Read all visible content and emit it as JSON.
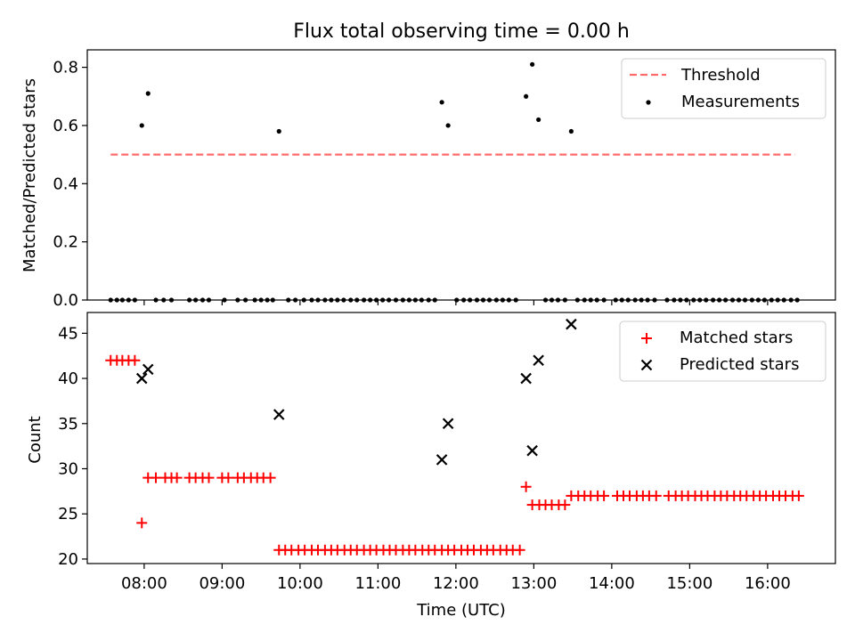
{
  "chart_data": [
    {
      "type": "scatter",
      "title": "Flux total observing time = 0.00 h",
      "xlabel": "",
      "ylabel": "Matched/Predicted stars",
      "xlim": [
        7.27,
        16.87
      ],
      "ylim": [
        0.0,
        0.86
      ],
      "yticks": [
        0.0,
        0.2,
        0.4,
        0.6,
        0.8
      ],
      "ytick_labels": [
        "0.0",
        "0.2",
        "0.4",
        "0.6",
        "0.8"
      ],
      "xticks": [
        8,
        9,
        10,
        11,
        12,
        13,
        14,
        15,
        16
      ],
      "legend_position": "top-right",
      "threshold": {
        "name": "Threshold",
        "color": "#ff6b6b",
        "y": 0.5,
        "x_start": 7.57,
        "x_end": 16.35
      },
      "measurements": {
        "name": "Measurements",
        "color": "#000000",
        "points": [
          [
            7.57,
            0
          ],
          [
            7.65,
            0
          ],
          [
            7.72,
            0
          ],
          [
            7.8,
            0
          ],
          [
            7.88,
            0
          ],
          [
            7.97,
            0.6
          ],
          [
            8.05,
            0.71
          ],
          [
            8.15,
            0
          ],
          [
            8.25,
            0
          ],
          [
            8.35,
            0
          ],
          [
            8.58,
            0
          ],
          [
            8.66,
            0
          ],
          [
            8.75,
            0
          ],
          [
            8.83,
            0
          ],
          [
            9.03,
            0
          ],
          [
            9.2,
            0
          ],
          [
            9.3,
            0
          ],
          [
            9.42,
            0
          ],
          [
            9.5,
            0
          ],
          [
            9.58,
            0
          ],
          [
            9.65,
            0
          ],
          [
            9.73,
            0.58
          ],
          [
            9.85,
            0
          ],
          [
            9.94,
            0
          ],
          [
            10.05,
            0
          ],
          [
            10.15,
            0
          ],
          [
            10.23,
            0
          ],
          [
            10.32,
            0
          ],
          [
            10.4,
            0
          ],
          [
            10.48,
            0
          ],
          [
            10.56,
            0
          ],
          [
            10.65,
            0
          ],
          [
            10.73,
            0
          ],
          [
            10.82,
            0
          ],
          [
            10.9,
            0
          ],
          [
            10.98,
            0
          ],
          [
            11.06,
            0
          ],
          [
            11.14,
            0
          ],
          [
            11.23,
            0
          ],
          [
            11.32,
            0
          ],
          [
            11.4,
            0
          ],
          [
            11.48,
            0
          ],
          [
            11.56,
            0
          ],
          [
            11.65,
            0
          ],
          [
            11.73,
            0
          ],
          [
            11.82,
            0.68
          ],
          [
            11.9,
            0.6
          ],
          [
            12.01,
            0
          ],
          [
            12.1,
            0
          ],
          [
            12.18,
            0
          ],
          [
            12.27,
            0
          ],
          [
            12.35,
            0
          ],
          [
            12.43,
            0
          ],
          [
            12.52,
            0
          ],
          [
            12.6,
            0
          ],
          [
            12.68,
            0
          ],
          [
            12.77,
            0
          ],
          [
            12.9,
            0.7
          ],
          [
            12.98,
            0.81
          ],
          [
            13.06,
            0.62
          ],
          [
            13.15,
            0
          ],
          [
            13.23,
            0
          ],
          [
            13.31,
            0
          ],
          [
            13.4,
            0
          ],
          [
            13.48,
            0.58
          ],
          [
            13.56,
            0
          ],
          [
            13.65,
            0
          ],
          [
            13.73,
            0
          ],
          [
            13.81,
            0
          ],
          [
            13.9,
            0
          ],
          [
            14.05,
            0
          ],
          [
            14.13,
            0
          ],
          [
            14.21,
            0
          ],
          [
            14.3,
            0
          ],
          [
            14.38,
            0
          ],
          [
            14.46,
            0
          ],
          [
            14.55,
            0
          ],
          [
            14.71,
            0
          ],
          [
            14.8,
            0
          ],
          [
            14.88,
            0
          ],
          [
            14.96,
            0
          ],
          [
            15.05,
            0
          ],
          [
            15.13,
            0
          ],
          [
            15.21,
            0
          ],
          [
            15.3,
            0
          ],
          [
            15.38,
            0
          ],
          [
            15.46,
            0
          ],
          [
            15.55,
            0
          ],
          [
            15.63,
            0
          ],
          [
            15.71,
            0
          ],
          [
            15.8,
            0
          ],
          [
            15.88,
            0
          ],
          [
            15.96,
            0
          ],
          [
            16.05,
            0
          ],
          [
            16.13,
            0
          ],
          [
            16.21,
            0
          ],
          [
            16.3,
            0
          ],
          [
            16.38,
            0
          ]
        ]
      }
    },
    {
      "type": "scatter",
      "title": "",
      "xlabel": "Time (UTC)",
      "ylabel": "Count",
      "xlim": [
        7.27,
        16.87
      ],
      "ylim": [
        19.5,
        47.3
      ],
      "yticks": [
        20,
        25,
        30,
        35,
        40,
        45
      ],
      "ytick_labels": [
        "20",
        "25",
        "30",
        "35",
        "40",
        "45"
      ],
      "xticks": [
        8,
        9,
        10,
        11,
        12,
        13,
        14,
        15,
        16
      ],
      "xtick_labels": [
        "08:00",
        "09:00",
        "10:00",
        "11:00",
        "12:00",
        "13:00",
        "14:00",
        "15:00",
        "16:00"
      ],
      "legend_position": "top-right",
      "matched": {
        "name": "Matched stars",
        "color": "#ff0000",
        "points": [
          [
            7.57,
            42
          ],
          [
            7.65,
            42
          ],
          [
            7.72,
            42
          ],
          [
            7.8,
            42
          ],
          [
            7.88,
            42
          ],
          [
            7.97,
            24
          ],
          [
            8.05,
            29
          ],
          [
            8.15,
            29
          ],
          [
            8.27,
            29
          ],
          [
            8.35,
            29
          ],
          [
            8.42,
            29
          ],
          [
            8.58,
            29
          ],
          [
            8.66,
            29
          ],
          [
            8.75,
            29
          ],
          [
            8.83,
            29
          ],
          [
            9.0,
            29
          ],
          [
            9.08,
            29
          ],
          [
            9.2,
            29
          ],
          [
            9.28,
            29
          ],
          [
            9.37,
            29
          ],
          [
            9.45,
            29
          ],
          [
            9.53,
            29
          ],
          [
            9.62,
            29
          ],
          [
            9.73,
            21
          ],
          [
            9.81,
            21
          ],
          [
            9.89,
            21
          ],
          [
            9.98,
            21
          ],
          [
            10.06,
            21
          ],
          [
            10.15,
            21
          ],
          [
            10.23,
            21
          ],
          [
            10.32,
            21
          ],
          [
            10.4,
            21
          ],
          [
            10.48,
            21
          ],
          [
            10.57,
            21
          ],
          [
            10.65,
            21
          ],
          [
            10.73,
            21
          ],
          [
            10.82,
            21
          ],
          [
            10.9,
            21
          ],
          [
            10.98,
            21
          ],
          [
            11.07,
            21
          ],
          [
            11.15,
            21
          ],
          [
            11.23,
            21
          ],
          [
            11.32,
            21
          ],
          [
            11.4,
            21
          ],
          [
            11.48,
            21
          ],
          [
            11.57,
            21
          ],
          [
            11.65,
            21
          ],
          [
            11.73,
            21
          ],
          [
            11.82,
            21
          ],
          [
            11.9,
            21
          ],
          [
            11.98,
            21
          ],
          [
            12.07,
            21
          ],
          [
            12.15,
            21
          ],
          [
            12.23,
            21
          ],
          [
            12.32,
            21
          ],
          [
            12.4,
            21
          ],
          [
            12.48,
            21
          ],
          [
            12.57,
            21
          ],
          [
            12.65,
            21
          ],
          [
            12.73,
            21
          ],
          [
            12.82,
            21
          ],
          [
            12.9,
            28
          ],
          [
            12.98,
            26
          ],
          [
            13.07,
            26
          ],
          [
            13.15,
            26
          ],
          [
            13.23,
            26
          ],
          [
            13.32,
            26
          ],
          [
            13.4,
            26
          ],
          [
            13.48,
            27
          ],
          [
            13.57,
            27
          ],
          [
            13.65,
            27
          ],
          [
            13.73,
            27
          ],
          [
            13.82,
            27
          ],
          [
            13.9,
            27
          ],
          [
            14.07,
            27
          ],
          [
            14.15,
            27
          ],
          [
            14.23,
            27
          ],
          [
            14.32,
            27
          ],
          [
            14.4,
            27
          ],
          [
            14.48,
            27
          ],
          [
            14.57,
            27
          ],
          [
            14.73,
            27
          ],
          [
            14.82,
            27
          ],
          [
            14.9,
            27
          ],
          [
            14.98,
            27
          ],
          [
            15.07,
            27
          ],
          [
            15.15,
            27
          ],
          [
            15.23,
            27
          ],
          [
            15.32,
            27
          ],
          [
            15.4,
            27
          ],
          [
            15.48,
            27
          ],
          [
            15.57,
            27
          ],
          [
            15.65,
            27
          ],
          [
            15.73,
            27
          ],
          [
            15.82,
            27
          ],
          [
            15.9,
            27
          ],
          [
            15.98,
            27
          ],
          [
            16.07,
            27
          ],
          [
            16.15,
            27
          ],
          [
            16.23,
            27
          ],
          [
            16.32,
            27
          ],
          [
            16.4,
            27
          ]
        ]
      },
      "predicted": {
        "name": "Predicted stars",
        "color": "#000000",
        "points": [
          [
            7.97,
            40
          ],
          [
            8.05,
            41
          ],
          [
            9.73,
            36
          ],
          [
            11.82,
            31
          ],
          [
            11.9,
            35
          ],
          [
            12.9,
            40
          ],
          [
            12.98,
            32
          ],
          [
            13.06,
            42
          ],
          [
            13.48,
            46
          ]
        ]
      }
    }
  ]
}
